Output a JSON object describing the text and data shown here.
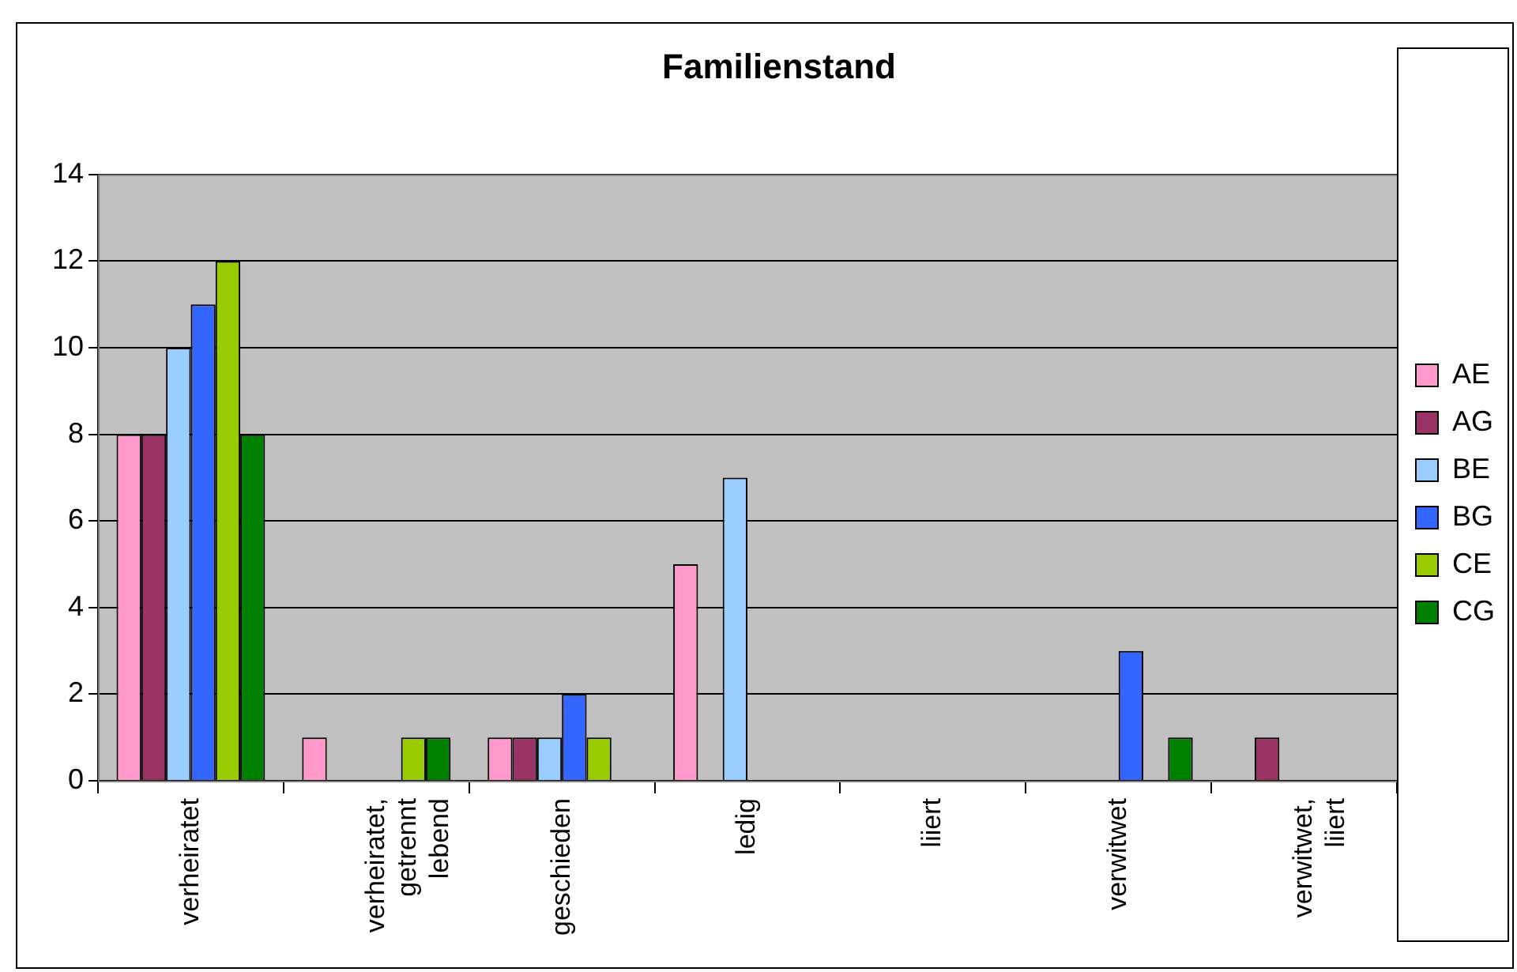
{
  "chart_data": {
    "type": "bar",
    "title": "Familienstand",
    "categories": [
      "verheiratet",
      "verheiratet, getrennt lebend",
      "geschieden",
      "ledig",
      "liiert",
      "verwitwet",
      "verwitwet, liiert"
    ],
    "series": [
      {
        "name": "AE",
        "color": "#ff99cc",
        "values": [
          8,
          1,
          1,
          5,
          0,
          0,
          0
        ]
      },
      {
        "name": "AG",
        "color": "#993366",
        "values": [
          8,
          0,
          1,
          0,
          0,
          0,
          1
        ]
      },
      {
        "name": "BE",
        "color": "#99ccff",
        "values": [
          10,
          0,
          1,
          7,
          0,
          0,
          0
        ]
      },
      {
        "name": "BG",
        "color": "#3366ff",
        "values": [
          11,
          0,
          2,
          0,
          0,
          3,
          0
        ]
      },
      {
        "name": "CE",
        "color": "#99cc00",
        "values": [
          12,
          1,
          1,
          0,
          0,
          0,
          0
        ]
      },
      {
        "name": "CG",
        "color": "#008000",
        "values": [
          8,
          1,
          0,
          0,
          0,
          1,
          0
        ]
      }
    ],
    "ylim": [
      0,
      14
    ],
    "yticks": [
      0,
      2,
      4,
      6,
      8,
      10,
      12,
      14
    ],
    "grid": "y",
    "legend": "right"
  }
}
